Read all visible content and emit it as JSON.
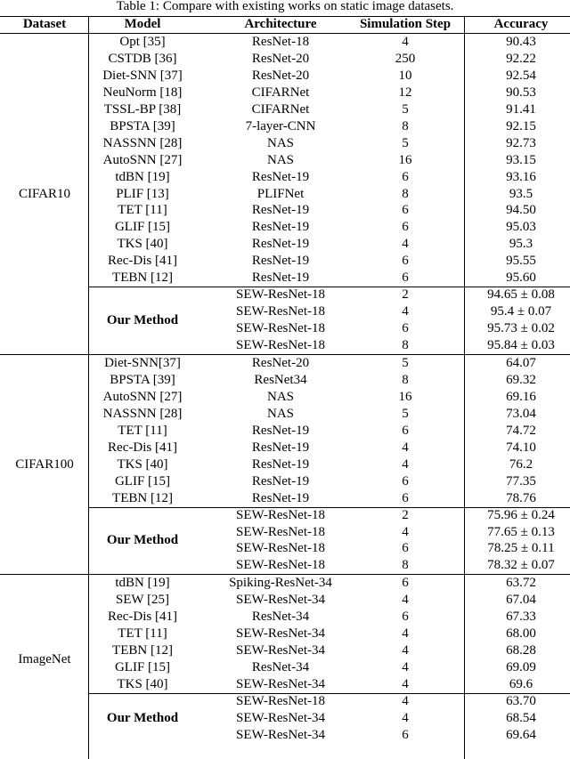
{
  "title": "Table 1: Compare with existing works on static image datasets.",
  "header": [
    "Dataset",
    "Model",
    "Architecture",
    "Simulation Step",
    "Accuracy"
  ],
  "groups": [
    {
      "dataset": "CIFAR10",
      "rows": [
        [
          "Opt [35]",
          "ResNet-18",
          "4",
          "90.43"
        ],
        [
          "CSTDB [36]",
          "ResNet-20",
          "250",
          "92.22"
        ],
        [
          "Diet-SNN [37]",
          "ResNet-20",
          "10",
          "92.54"
        ],
        [
          "NeuNorm [18]",
          "CIFARNet",
          "12",
          "90.53"
        ],
        [
          "TSSL-BP [38]",
          "CIFARNet",
          "5",
          "91.41"
        ],
        [
          "BPSTA [39]",
          "7-layer-CNN",
          "8",
          "92.15"
        ],
        [
          "NASSNN [28]",
          "NAS",
          "5",
          "92.73"
        ],
        [
          "AutoSNN [27]",
          "NAS",
          "16",
          "93.15"
        ],
        [
          "tdBN [19]",
          "ResNet-19",
          "6",
          "93.16"
        ],
        [
          "PLIF [13]",
          "PLIFNet",
          "8",
          "93.5"
        ],
        [
          "TET [11]",
          "ResNet-19",
          "6",
          "94.50"
        ],
        [
          "GLIF [15]",
          "ResNet-19",
          "6",
          "95.03"
        ],
        [
          "TKS [40]",
          "ResNet-19",
          "4",
          "95.3"
        ],
        [
          "Rec-Dis [41]",
          "ResNet-19",
          "6",
          "95.55"
        ],
        [
          "TEBN [12]",
          "ResNet-19",
          "6",
          "95.60"
        ]
      ],
      "ours": {
        "model": "Our Method",
        "rows": [
          [
            "SEW-ResNet-18",
            "2",
            "94.65 ± 0.08"
          ],
          [
            "SEW-ResNet-18",
            "4",
            "95.4 ± 0.07"
          ],
          [
            "SEW-ResNet-18",
            "6",
            "95.73 ± 0.02"
          ],
          [
            "SEW-ResNet-18",
            "8",
            "95.84 ± 0.03"
          ]
        ]
      }
    },
    {
      "dataset": "CIFAR100",
      "rows": [
        [
          "Diet-SNN[37]",
          "ResNet-20",
          "5",
          "64.07"
        ],
        [
          "BPSTA [39]",
          "ResNet34",
          "8",
          "69.32"
        ],
        [
          "AutoSNN [27]",
          "NAS",
          "16",
          "69.16"
        ],
        [
          "NASSNN [28]",
          "NAS",
          "5",
          "73.04"
        ],
        [
          "TET [11]",
          "ResNet-19",
          "6",
          "74.72"
        ],
        [
          "Rec-Dis [41]",
          "ResNet-19",
          "4",
          "74.10"
        ],
        [
          "TKS [40]",
          "ResNet-19",
          "4",
          "76.2"
        ],
        [
          "GLIF [15]",
          "ResNet-19",
          "6",
          "77.35"
        ],
        [
          "TEBN [12]",
          "ResNet-19",
          "6",
          "78.76"
        ]
      ],
      "ours": {
        "model": "Our Method",
        "rows": [
          [
            "SEW-ResNet-18",
            "2",
            "75.96 ± 0.24"
          ],
          [
            "SEW-ResNet-18",
            "4",
            "77.65 ± 0.13"
          ],
          [
            "SEW-ResNet-18",
            "6",
            "78.25 ± 0.11"
          ],
          [
            "SEW-ResNet-18",
            "8",
            "78.32 ± 0.07"
          ]
        ]
      }
    },
    {
      "dataset": "ImageNet",
      "rows": [
        [
          "tdBN [19]",
          "Spiking-ResNet-34",
          "6",
          "63.72"
        ],
        [
          "SEW [25]",
          "SEW-ResNet-34",
          "4",
          "67.04"
        ],
        [
          "Rec-Dis [41]",
          "ResNet-34",
          "6",
          "67.33"
        ],
        [
          "TET [11]",
          "SEW-ResNet-34",
          "4",
          "68.00"
        ],
        [
          "TEBN [12]",
          "SEW-ResNet-34",
          "4",
          "68.28"
        ],
        [
          "GLIF [15]",
          "ResNet-34",
          "4",
          "69.09"
        ],
        [
          "TKS [40]",
          "SEW-ResNet-34",
          "4",
          "69.6"
        ]
      ],
      "ours": {
        "model": "Our Method",
        "rows": [
          [
            "SEW-ResNet-18",
            "4",
            "63.70"
          ],
          [
            "SEW-ResNet-34",
            "4",
            "68.54"
          ],
          [
            "SEW-ResNet-34",
            "6",
            "69.64"
          ]
        ]
      }
    }
  ]
}
